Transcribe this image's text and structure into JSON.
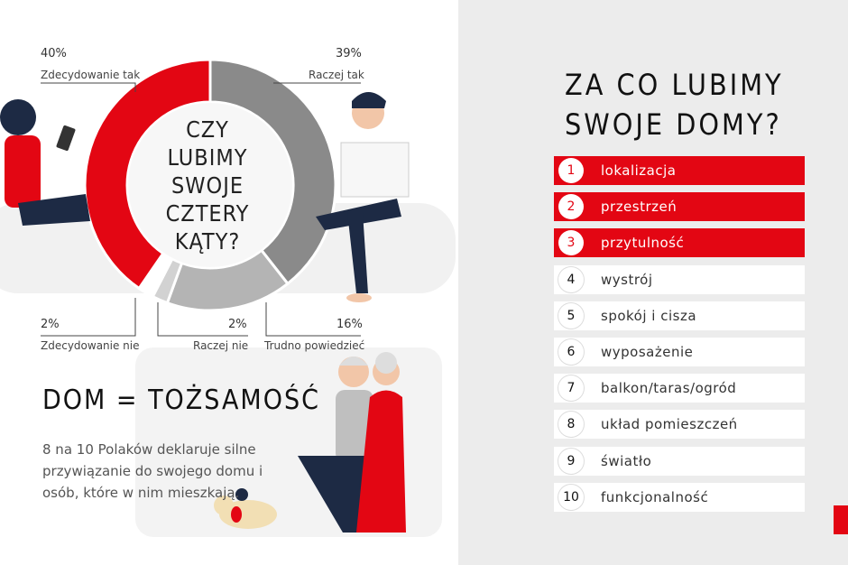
{
  "chart": {
    "center_title": [
      "CZY",
      "LUBIMY",
      "SWOJE",
      "CZTERY",
      "KĄTY?"
    ],
    "segments": [
      {
        "value": 40,
        "pct": "40%",
        "label": "Zdecydowanie tak",
        "color": "#e30613"
      },
      {
        "value": 39,
        "pct": "39%",
        "label": "Raczej tak",
        "color": "#8a8a8a"
      },
      {
        "value": 16,
        "pct": "16%",
        "label": "Trudno powiedzieć",
        "color": "#b4b4b4"
      },
      {
        "value": 2,
        "pct": "2%",
        "label": "Raczej nie",
        "color": "#d2d2d2"
      },
      {
        "value": 2,
        "pct": "2%",
        "label": "Zdecydowanie nie",
        "color": "#ffffff"
      }
    ]
  },
  "identity": {
    "heading": "DOM = TOŻSAMOŚĆ",
    "body": "8 na 10 Polaków deklaruje silne przywiązanie do swojego domu i osób, które w nim mieszkają."
  },
  "ranking": {
    "title_line1": "ZA CO LUBIMY",
    "title_line2": "SWOJE DOMY?",
    "items": [
      {
        "rank": "1",
        "label": "lokalizacja",
        "highlight": true
      },
      {
        "rank": "2",
        "label": "przestrzeń",
        "highlight": true
      },
      {
        "rank": "3",
        "label": "przytulność",
        "highlight": true
      },
      {
        "rank": "4",
        "label": "wystrój",
        "highlight": false
      },
      {
        "rank": "5",
        "label": "spokój i cisza",
        "highlight": false
      },
      {
        "rank": "6",
        "label": "wyposażenie",
        "highlight": false
      },
      {
        "rank": "7",
        "label": "balkon/taras/ogród",
        "highlight": false
      },
      {
        "rank": "8",
        "label": "układ pomieszczeń",
        "highlight": false
      },
      {
        "rank": "9",
        "label": "światło",
        "highlight": false
      },
      {
        "rank": "10",
        "label": "funkcjonalność",
        "highlight": false
      }
    ]
  },
  "colors": {
    "accent": "#e30613",
    "panel": "#ececec"
  }
}
